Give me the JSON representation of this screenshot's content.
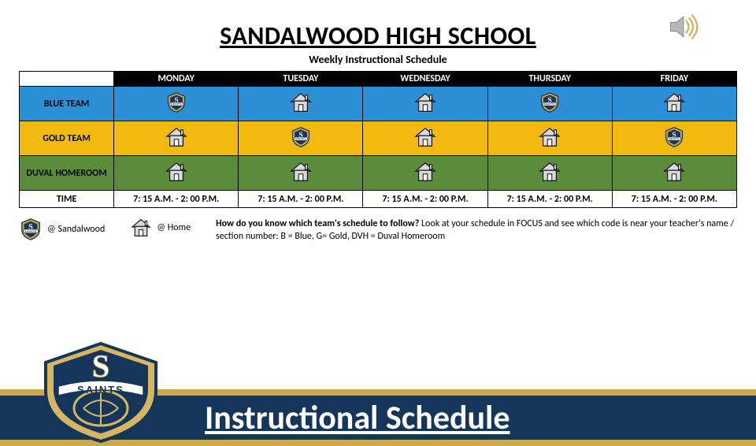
{
  "title": "SANDALWOOD HIGH SCHOOL",
  "subtitle": "Weekly Instructional Schedule",
  "days": [
    "MONDAY",
    "TUESDAY",
    "WEDNESDAY",
    "THURSDAY",
    "FRIDAY"
  ],
  "rows": [
    {
      "label": "BLUE TEAM",
      "bg": "#2b8fd6",
      "cells": [
        "school",
        "home",
        "home",
        "school",
        "home"
      ]
    },
    {
      "label": "GOLD TEAM",
      "bg": "#f2b90f",
      "cells": [
        "home",
        "school",
        "home",
        "home",
        "school"
      ]
    },
    {
      "label": "DUVAL HOMEROOM",
      "bg": "#5b8c3a",
      "cells": [
        "home",
        "home",
        "home",
        "home",
        "home"
      ]
    }
  ],
  "time_label": "TIME",
  "time_value": "7: 15 A.M. - 2: 00 P.M.",
  "legend": {
    "at_school": "@ Sandalwood",
    "at_home": "@ Home",
    "help_bold": "How do you know which team's schedule to follow?",
    "help_rest": "  Look at your schedule in FOCUS and see which code is near your teacher's name / section number:  B = Blue, G= Gold, DVH = Duval Homeroom"
  },
  "footer_title": "Instructional Schedule",
  "colors": {
    "navy": "#16355b",
    "gold_band": "#c8a94c",
    "badge_gold": "#d6b661",
    "badge_navy": "#16355b"
  },
  "icons": {
    "house_fill": "#d9d9d9",
    "house_stroke": "#000000",
    "logo_gold": "#caa64e",
    "logo_navy": "#1b3554"
  }
}
